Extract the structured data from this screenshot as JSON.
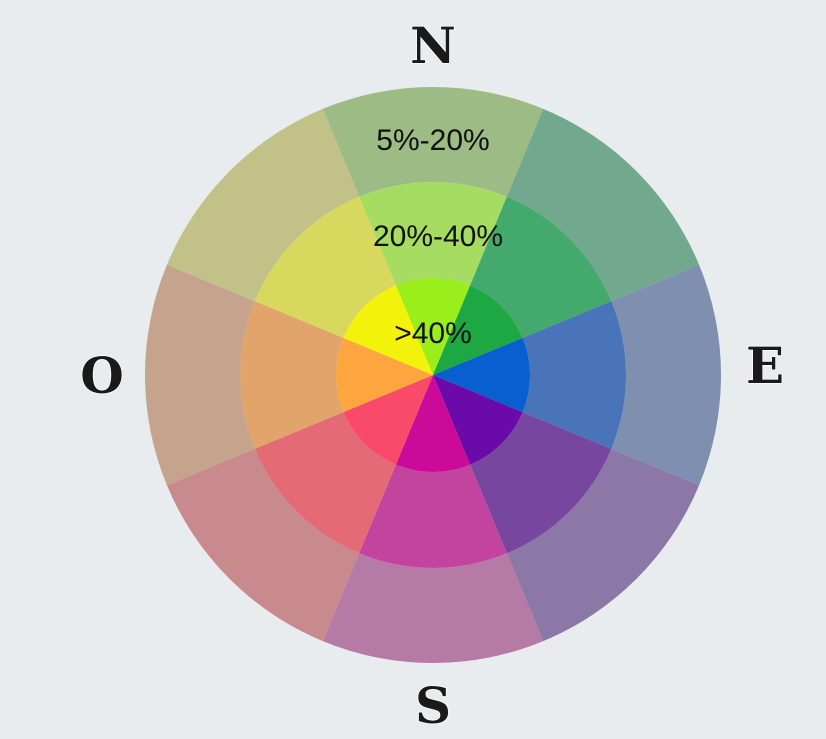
{
  "compass": {
    "north": "N",
    "east": "E",
    "south": "S",
    "west": "O"
  },
  "rings": {
    "outer": "5%-20%",
    "middle": "20%-40%",
    "inner": ">40%"
  }
}
